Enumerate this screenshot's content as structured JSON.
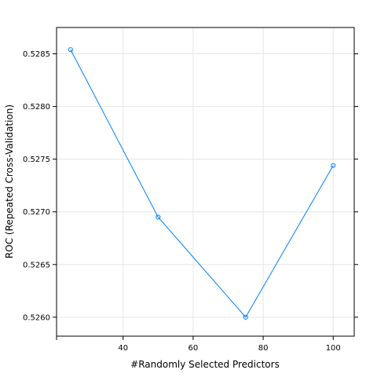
{
  "chart_data": {
    "type": "line",
    "title": "",
    "xlabel": "#Randomly Selected Predictors",
    "ylabel": "ROC (Repeated Cross-Validation)",
    "x": [
      25,
      50,
      75,
      100
    ],
    "series": [
      {
        "values": [
          0.52854,
          0.52695,
          0.526,
          0.52744
        ],
        "color": "#0080ff"
      }
    ],
    "xlim": [
      21,
      106
    ],
    "ylim": [
      0.52582,
      0.52875
    ],
    "xticks": [
      {
        "value": 40,
        "label": "40"
      },
      {
        "value": 60,
        "label": "60"
      },
      {
        "value": 80,
        "label": "80"
      },
      {
        "value": 100,
        "label": "100"
      }
    ],
    "yticks": [
      {
        "value": 0.526,
        "label": "0.5260"
      },
      {
        "value": 0.5265,
        "label": "0.5265"
      },
      {
        "value": 0.527,
        "label": "0.5270"
      },
      {
        "value": 0.5275,
        "label": "0.5275"
      },
      {
        "value": 0.528,
        "label": "0.5280"
      },
      {
        "value": 0.5285,
        "label": "0.5285"
      }
    ],
    "grid": true,
    "legend": "none"
  }
}
